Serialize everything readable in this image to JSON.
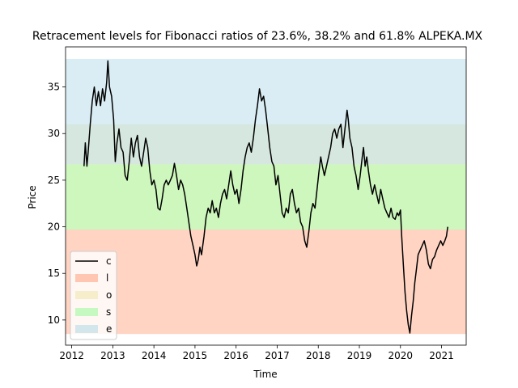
{
  "chart_data": {
    "type": "line",
    "title": "Retracement levels for Fibonacci ratios of 23.6%, 38.2% and 61.8%   ALPEKA.MX",
    "xlabel": "Time",
    "ylabel": "Price",
    "xlim": [
      2011.85,
      2021.6
    ],
    "ylim": [
      7.3,
      39.3
    ],
    "x_ticks": [
      2012,
      2013,
      2014,
      2015,
      2016,
      2017,
      2018,
      2019,
      2020,
      2021
    ],
    "y_ticks": [
      10,
      15,
      20,
      25,
      30,
      35
    ],
    "grid": false,
    "legend_position": "lower-left",
    "bands": [
      {
        "name": "l",
        "y0": 8.5,
        "y1": 19.7,
        "color": "#ffa07a",
        "opacity": 0.45
      },
      {
        "name": "o",
        "y0": 19.7,
        "y1": 26.7,
        "color": "#eee8aa",
        "opacity": 0.45
      },
      {
        "name": "s",
        "y0": 19.7,
        "y1": 26.7,
        "color": "#98fb98",
        "opacity": 0.45
      },
      {
        "name": "o",
        "y0": 26.7,
        "y1": 31.0,
        "color": "#eee8aa",
        "opacity": 0.45
      },
      {
        "name": "e",
        "y0": 26.7,
        "y1": 38.0,
        "color": "#add8e6",
        "opacity": 0.45
      }
    ],
    "series": [
      {
        "name": "c",
        "color": "#000000",
        "points": [
          [
            2012.3,
            26.5
          ],
          [
            2012.33,
            29.0
          ],
          [
            2012.37,
            26.5
          ],
          [
            2012.4,
            28.0
          ],
          [
            2012.45,
            31.0
          ],
          [
            2012.5,
            33.5
          ],
          [
            2012.55,
            35.0
          ],
          [
            2012.6,
            33.0
          ],
          [
            2012.65,
            34.5
          ],
          [
            2012.7,
            33.0
          ],
          [
            2012.75,
            34.8
          ],
          [
            2012.8,
            33.5
          ],
          [
            2012.85,
            35.5
          ],
          [
            2012.88,
            37.8
          ],
          [
            2012.92,
            35.0
          ],
          [
            2012.97,
            34.0
          ],
          [
            2013.02,
            31.5
          ],
          [
            2013.06,
            27.0
          ],
          [
            2013.1,
            29.0
          ],
          [
            2013.15,
            30.5
          ],
          [
            2013.2,
            28.5
          ],
          [
            2013.25,
            28.0
          ],
          [
            2013.3,
            25.5
          ],
          [
            2013.35,
            25.0
          ],
          [
            2013.4,
            27.0
          ],
          [
            2013.45,
            29.5
          ],
          [
            2013.5,
            27.5
          ],
          [
            2013.55,
            29.0
          ],
          [
            2013.6,
            29.8
          ],
          [
            2013.65,
            27.5
          ],
          [
            2013.7,
            26.5
          ],
          [
            2013.75,
            28.0
          ],
          [
            2013.8,
            29.5
          ],
          [
            2013.85,
            28.5
          ],
          [
            2013.9,
            26.0
          ],
          [
            2013.95,
            24.5
          ],
          [
            2014.0,
            25.0
          ],
          [
            2014.05,
            24.0
          ],
          [
            2014.1,
            22.0
          ],
          [
            2014.15,
            21.8
          ],
          [
            2014.2,
            23.0
          ],
          [
            2014.25,
            24.5
          ],
          [
            2014.3,
            25.0
          ],
          [
            2014.35,
            24.5
          ],
          [
            2014.4,
            25.0
          ],
          [
            2014.45,
            25.5
          ],
          [
            2014.5,
            26.8
          ],
          [
            2014.55,
            25.5
          ],
          [
            2014.6,
            24.0
          ],
          [
            2014.65,
            25.0
          ],
          [
            2014.7,
            24.5
          ],
          [
            2014.75,
            23.5
          ],
          [
            2014.8,
            22.0
          ],
          [
            2014.85,
            20.5
          ],
          [
            2014.9,
            19.0
          ],
          [
            2014.95,
            18.0
          ],
          [
            2015.0,
            17.0
          ],
          [
            2015.04,
            15.8
          ],
          [
            2015.08,
            16.5
          ],
          [
            2015.12,
            17.8
          ],
          [
            2015.16,
            17.0
          ],
          [
            2015.22,
            19.0
          ],
          [
            2015.27,
            21.0
          ],
          [
            2015.32,
            22.0
          ],
          [
            2015.37,
            21.5
          ],
          [
            2015.42,
            22.8
          ],
          [
            2015.47,
            21.5
          ],
          [
            2015.52,
            22.0
          ],
          [
            2015.57,
            21.0
          ],
          [
            2015.62,
            22.5
          ],
          [
            2015.67,
            23.5
          ],
          [
            2015.72,
            24.0
          ],
          [
            2015.77,
            23.0
          ],
          [
            2015.82,
            24.5
          ],
          [
            2015.87,
            26.0
          ],
          [
            2015.92,
            24.5
          ],
          [
            2015.97,
            23.5
          ],
          [
            2016.02,
            24.0
          ],
          [
            2016.07,
            22.5
          ],
          [
            2016.12,
            24.0
          ],
          [
            2016.17,
            26.0
          ],
          [
            2016.22,
            27.5
          ],
          [
            2016.27,
            28.5
          ],
          [
            2016.32,
            29.0
          ],
          [
            2016.37,
            28.0
          ],
          [
            2016.42,
            29.5
          ],
          [
            2016.47,
            31.5
          ],
          [
            2016.52,
            33.0
          ],
          [
            2016.57,
            34.8
          ],
          [
            2016.62,
            33.5
          ],
          [
            2016.67,
            34.0
          ],
          [
            2016.72,
            32.5
          ],
          [
            2016.77,
            30.5
          ],
          [
            2016.82,
            28.5
          ],
          [
            2016.87,
            27.0
          ],
          [
            2016.92,
            26.5
          ],
          [
            2016.97,
            24.5
          ],
          [
            2017.02,
            25.5
          ],
          [
            2017.07,
            23.5
          ],
          [
            2017.12,
            21.5
          ],
          [
            2017.17,
            21.0
          ],
          [
            2017.22,
            22.0
          ],
          [
            2017.27,
            21.5
          ],
          [
            2017.32,
            23.5
          ],
          [
            2017.37,
            24.0
          ],
          [
            2017.42,
            22.5
          ],
          [
            2017.47,
            21.5
          ],
          [
            2017.52,
            22.0
          ],
          [
            2017.57,
            20.5
          ],
          [
            2017.62,
            20.0
          ],
          [
            2017.67,
            18.5
          ],
          [
            2017.72,
            17.8
          ],
          [
            2017.77,
            19.5
          ],
          [
            2017.82,
            21.5
          ],
          [
            2017.87,
            22.5
          ],
          [
            2017.92,
            22.0
          ],
          [
            2017.97,
            24.0
          ],
          [
            2018.02,
            26.0
          ],
          [
            2018.06,
            27.5
          ],
          [
            2018.1,
            26.5
          ],
          [
            2018.15,
            25.5
          ],
          [
            2018.2,
            26.5
          ],
          [
            2018.25,
            27.5
          ],
          [
            2018.3,
            28.5
          ],
          [
            2018.35,
            30.0
          ],
          [
            2018.4,
            30.5
          ],
          [
            2018.45,
            29.5
          ],
          [
            2018.5,
            30.5
          ],
          [
            2018.55,
            31.0
          ],
          [
            2018.6,
            28.5
          ],
          [
            2018.65,
            30.5
          ],
          [
            2018.7,
            32.5
          ],
          [
            2018.73,
            31.5
          ],
          [
            2018.77,
            29.5
          ],
          [
            2018.82,
            28.5
          ],
          [
            2018.87,
            26.5
          ],
          [
            2018.92,
            25.5
          ],
          [
            2018.97,
            24.0
          ],
          [
            2019.02,
            25.5
          ],
          [
            2019.07,
            27.5
          ],
          [
            2019.1,
            28.5
          ],
          [
            2019.14,
            26.5
          ],
          [
            2019.18,
            27.5
          ],
          [
            2019.22,
            26.0
          ],
          [
            2019.27,
            24.5
          ],
          [
            2019.32,
            23.5
          ],
          [
            2019.37,
            24.5
          ],
          [
            2019.42,
            23.5
          ],
          [
            2019.47,
            22.5
          ],
          [
            2019.52,
            24.0
          ],
          [
            2019.57,
            23.0
          ],
          [
            2019.62,
            22.0
          ],
          [
            2019.67,
            21.5
          ],
          [
            2019.72,
            21.0
          ],
          [
            2019.77,
            22.0
          ],
          [
            2019.82,
            21.0
          ],
          [
            2019.87,
            20.8
          ],
          [
            2019.92,
            21.5
          ],
          [
            2019.96,
            21.2
          ],
          [
            2020.0,
            21.8
          ],
          [
            2020.03,
            19.0
          ],
          [
            2020.07,
            16.0
          ],
          [
            2020.11,
            13.0
          ],
          [
            2020.15,
            11.0
          ],
          [
            2020.19,
            9.5
          ],
          [
            2020.23,
            8.6
          ],
          [
            2020.27,
            10.5
          ],
          [
            2020.31,
            12.0
          ],
          [
            2020.35,
            14.0
          ],
          [
            2020.39,
            15.5
          ],
          [
            2020.43,
            17.0
          ],
          [
            2020.48,
            17.5
          ],
          [
            2020.53,
            18.0
          ],
          [
            2020.58,
            18.5
          ],
          [
            2020.63,
            17.5
          ],
          [
            2020.68,
            16.0
          ],
          [
            2020.73,
            15.5
          ],
          [
            2020.78,
            16.5
          ],
          [
            2020.83,
            16.8
          ],
          [
            2020.88,
            17.5
          ],
          [
            2020.93,
            18.0
          ],
          [
            2020.98,
            18.5
          ],
          [
            2021.03,
            18.0
          ],
          [
            2021.08,
            18.5
          ],
          [
            2021.12,
            19.0
          ],
          [
            2021.15,
            20.0
          ]
        ]
      }
    ],
    "legend": [
      {
        "label": "c",
        "kind": "line",
        "color": "#000000"
      },
      {
        "label": "l",
        "kind": "patch",
        "color": "#ffa07a"
      },
      {
        "label": "o",
        "kind": "patch",
        "color": "#eee8aa"
      },
      {
        "label": "s",
        "kind": "patch",
        "color": "#98fb98"
      },
      {
        "label": "e",
        "kind": "patch",
        "color": "#add8e6"
      }
    ]
  }
}
